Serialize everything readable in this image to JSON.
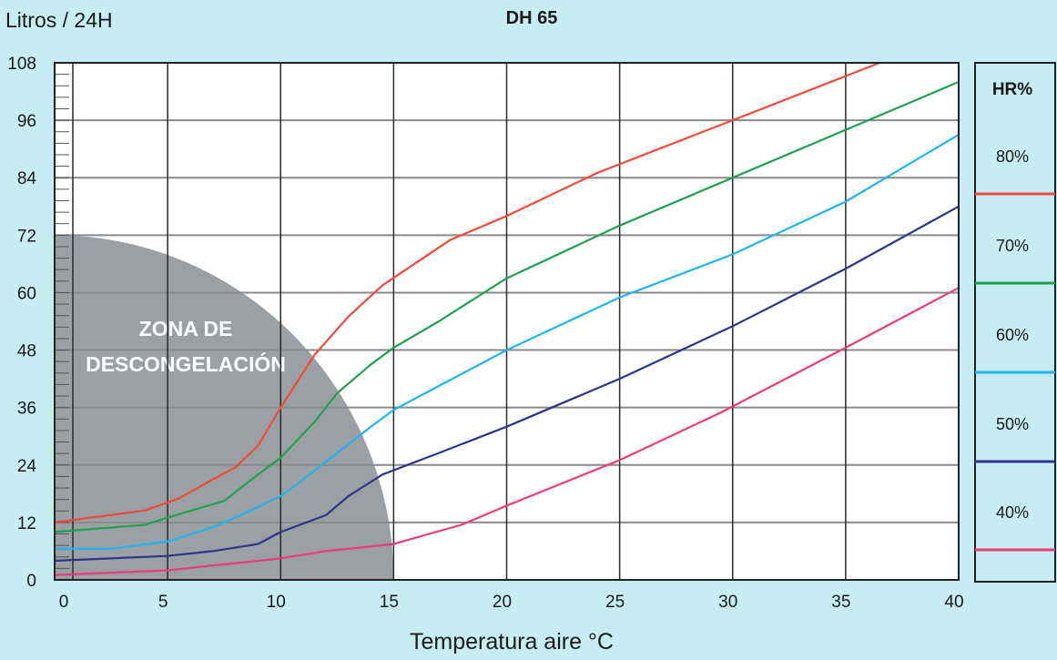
{
  "chart_data": {
    "type": "line",
    "title": "DH 65",
    "xlabel": "Temperatura aire °C",
    "ylabel": "Litros / 24H",
    "xlim": [
      0,
      40
    ],
    "ylim": [
      0,
      108
    ],
    "xticks": [
      0,
      5,
      10,
      15,
      20,
      25,
      30,
      35,
      40
    ],
    "yticks": [
      0,
      12,
      24,
      36,
      48,
      60,
      72,
      84,
      96,
      108
    ],
    "grid": true,
    "legend": {
      "title": "HR%",
      "placement": "right"
    },
    "zone": {
      "label_line1": "ZONA DE",
      "label_line2": "DESCONGELACIÓN",
      "radius_x": 15,
      "radius_y": 72,
      "color": "#9aa0a3"
    },
    "series": [
      {
        "name": "80%",
        "color": "#f04a3c",
        "points": [
          [
            0,
            12
          ],
          [
            4,
            14.5
          ],
          [
            5.5,
            17
          ],
          [
            7,
            21
          ],
          [
            8,
            23.5
          ],
          [
            9,
            28
          ],
          [
            10,
            36
          ],
          [
            11.5,
            47
          ],
          [
            13,
            55
          ],
          [
            14.5,
            61.5
          ],
          [
            17.5,
            71
          ],
          [
            20,
            76
          ],
          [
            24,
            85
          ],
          [
            30,
            96
          ],
          [
            36.5,
            108
          ]
        ]
      },
      {
        "name": "70%",
        "color": "#20a050",
        "points": [
          [
            0,
            10
          ],
          [
            4,
            11.5
          ],
          [
            5,
            13
          ],
          [
            7.5,
            16.5
          ],
          [
            9,
            22
          ],
          [
            10,
            25.5
          ],
          [
            11.5,
            33
          ],
          [
            12.5,
            39
          ],
          [
            14,
            45
          ],
          [
            15,
            48.5
          ],
          [
            17,
            54
          ],
          [
            19,
            60
          ],
          [
            20,
            63
          ],
          [
            25,
            74
          ],
          [
            30,
            84
          ],
          [
            35,
            94
          ],
          [
            40,
            104
          ]
        ]
      },
      {
        "name": "60%",
        "color": "#22b4ef",
        "points": [
          [
            0,
            6.5
          ],
          [
            2.5,
            6.5
          ],
          [
            5,
            8
          ],
          [
            7,
            11
          ],
          [
            8,
            13
          ],
          [
            10,
            17.5
          ],
          [
            11,
            21
          ],
          [
            12.5,
            26.5
          ],
          [
            14,
            32
          ],
          [
            15,
            35.5
          ],
          [
            17,
            40.5
          ],
          [
            20,
            48
          ],
          [
            25,
            59
          ],
          [
            30,
            68
          ],
          [
            35,
            79
          ],
          [
            40,
            93
          ]
        ]
      },
      {
        "name": "50%",
        "color": "#2c3688",
        "points": [
          [
            0,
            4
          ],
          [
            5,
            5
          ],
          [
            7,
            6
          ],
          [
            9,
            7.5
          ],
          [
            10,
            10
          ],
          [
            12,
            13.5
          ],
          [
            13,
            17.5
          ],
          [
            14.5,
            22
          ],
          [
            17,
            26.5
          ],
          [
            20,
            32
          ],
          [
            25,
            42
          ],
          [
            30,
            53
          ],
          [
            35,
            65
          ],
          [
            40,
            78
          ]
        ]
      },
      {
        "name": "40%",
        "color": "#ea3d78",
        "points": [
          [
            0,
            1
          ],
          [
            5,
            2
          ],
          [
            7,
            3
          ],
          [
            9,
            4
          ],
          [
            10,
            4.5
          ],
          [
            12,
            6
          ],
          [
            15,
            7.5
          ],
          [
            16.5,
            9.5
          ],
          [
            18,
            11.5
          ],
          [
            20,
            15.5
          ],
          [
            25,
            25
          ],
          [
            29.5,
            35
          ],
          [
            35,
            48.5
          ],
          [
            40,
            61
          ]
        ]
      }
    ]
  }
}
